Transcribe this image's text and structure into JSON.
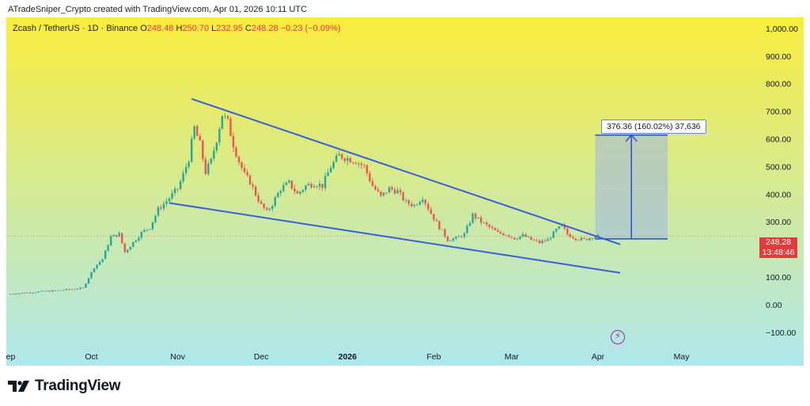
{
  "header": {
    "attribution": "ATradeSniper_Crypto created with TradingView.com, Apr 01, 2026 10:11 UTC"
  },
  "symbol": {
    "name": "Zcash / TetherUS · 1D · Binance",
    "open_label": "O",
    "open": "248.48",
    "high_label": "H",
    "high": "250.70",
    "low_label": "L",
    "low": "232.95",
    "close_label": "C",
    "close": "248.28",
    "change": "−0.23 (−0.09%)"
  },
  "price_tag": {
    "price": "248.28",
    "countdown": "13:48:46"
  },
  "measure": {
    "label": "376.36 (160.02%) 37,636"
  },
  "brand": {
    "name": "TradingView"
  },
  "colors": {
    "up": "#26a69a",
    "down": "#ef5350",
    "trendline": "#3a5fd9",
    "measure_fill": "#9eb6e3",
    "measure_line": "#2f56d1",
    "gradient_top": "#f9ec3d",
    "gradient_bottom": "#aee7ee",
    "price_tag": "#e03c3c"
  },
  "icons": {
    "brand": "tradingview-logo-icon",
    "event": "lightning-bolt-icon"
  },
  "chart_data": {
    "type": "candlestick",
    "title": "Zcash / TetherUS · 1D · Binance",
    "x_type": "date",
    "xlim": [
      "2025-09-01",
      "2026-05-25"
    ],
    "ylim": [
      -135,
      1040
    ],
    "yticks": [
      1000,
      900,
      800,
      700,
      600,
      500,
      400,
      300,
      100,
      0,
      -100
    ],
    "ytick_labels": [
      "1,000.00",
      "900.00",
      "800.00",
      "700.00",
      "600.00",
      "500.00",
      "400.00",
      "300.00",
      "100.00",
      "0.00",
      "−100.00"
    ],
    "xticks": [
      {
        "date": "2025-09-01",
        "label": "Sep"
      },
      {
        "date": "2025-10-01",
        "label": "Oct"
      },
      {
        "date": "2025-11-01",
        "label": "Nov"
      },
      {
        "date": "2025-12-01",
        "label": "Dec"
      },
      {
        "date": "2026-01-01",
        "label": "2026"
      },
      {
        "date": "2026-02-01",
        "label": "Feb"
      },
      {
        "date": "2026-03-01",
        "label": "Mar"
      },
      {
        "date": "2026-04-01",
        "label": "Apr"
      },
      {
        "date": "2026-05-01",
        "label": "May"
      }
    ],
    "last_price": 248.28,
    "grid": false,
    "price_path": [
      {
        "date": "2025-09-01",
        "price": 38
      },
      {
        "date": "2025-09-10",
        "price": 45
      },
      {
        "date": "2025-09-20",
        "price": 52
      },
      {
        "date": "2025-09-28",
        "price": 60
      },
      {
        "date": "2025-10-02",
        "price": 135
      },
      {
        "date": "2025-10-05",
        "price": 165
      },
      {
        "date": "2025-10-08",
        "price": 245
      },
      {
        "date": "2025-10-11",
        "price": 255
      },
      {
        "date": "2025-10-13",
        "price": 190
      },
      {
        "date": "2025-10-16",
        "price": 225
      },
      {
        "date": "2025-10-19",
        "price": 260
      },
      {
        "date": "2025-10-22",
        "price": 280
      },
      {
        "date": "2025-10-25",
        "price": 345
      },
      {
        "date": "2025-10-28",
        "price": 375
      },
      {
        "date": "2025-11-01",
        "price": 420
      },
      {
        "date": "2025-11-03",
        "price": 470
      },
      {
        "date": "2025-11-05",
        "price": 530
      },
      {
        "date": "2025-11-07",
        "price": 640
      },
      {
        "date": "2025-11-09",
        "price": 580
      },
      {
        "date": "2025-11-11",
        "price": 480
      },
      {
        "date": "2025-11-13",
        "price": 520
      },
      {
        "date": "2025-11-15",
        "price": 600
      },
      {
        "date": "2025-11-17",
        "price": 690
      },
      {
        "date": "2025-11-19",
        "price": 660
      },
      {
        "date": "2025-11-21",
        "price": 580
      },
      {
        "date": "2025-11-23",
        "price": 520
      },
      {
        "date": "2025-11-25",
        "price": 470
      },
      {
        "date": "2025-11-27",
        "price": 445
      },
      {
        "date": "2025-11-29",
        "price": 400
      },
      {
        "date": "2025-12-01",
        "price": 360
      },
      {
        "date": "2025-12-03",
        "price": 335
      },
      {
        "date": "2025-12-05",
        "price": 365
      },
      {
        "date": "2025-12-08",
        "price": 420
      },
      {
        "date": "2025-12-11",
        "price": 440
      },
      {
        "date": "2025-12-14",
        "price": 400
      },
      {
        "date": "2025-12-17",
        "price": 430
      },
      {
        "date": "2025-12-20",
        "price": 440
      },
      {
        "date": "2025-12-23",
        "price": 430
      },
      {
        "date": "2025-12-26",
        "price": 500
      },
      {
        "date": "2025-12-29",
        "price": 540
      },
      {
        "date": "2026-01-01",
        "price": 530
      },
      {
        "date": "2026-01-04",
        "price": 520
      },
      {
        "date": "2026-01-07",
        "price": 500
      },
      {
        "date": "2026-01-10",
        "price": 430
      },
      {
        "date": "2026-01-13",
        "price": 390
      },
      {
        "date": "2026-01-16",
        "price": 420
      },
      {
        "date": "2026-01-19",
        "price": 410
      },
      {
        "date": "2026-01-22",
        "price": 370
      },
      {
        "date": "2026-01-25",
        "price": 360
      },
      {
        "date": "2026-01-28",
        "price": 390
      },
      {
        "date": "2026-01-31",
        "price": 330
      },
      {
        "date": "2026-02-03",
        "price": 280
      },
      {
        "date": "2026-02-06",
        "price": 235
      },
      {
        "date": "2026-02-09",
        "price": 240
      },
      {
        "date": "2026-02-12",
        "price": 255
      },
      {
        "date": "2026-02-15",
        "price": 325
      },
      {
        "date": "2026-02-18",
        "price": 300
      },
      {
        "date": "2026-02-21",
        "price": 280
      },
      {
        "date": "2026-02-24",
        "price": 260
      },
      {
        "date": "2026-02-27",
        "price": 255
      },
      {
        "date": "2026-03-02",
        "price": 240
      },
      {
        "date": "2026-03-05",
        "price": 250
      },
      {
        "date": "2026-03-08",
        "price": 235
      },
      {
        "date": "2026-03-11",
        "price": 225
      },
      {
        "date": "2026-03-14",
        "price": 235
      },
      {
        "date": "2026-03-17",
        "price": 270
      },
      {
        "date": "2026-03-19",
        "price": 285
      },
      {
        "date": "2026-03-21",
        "price": 255
      },
      {
        "date": "2026-03-24",
        "price": 240
      },
      {
        "date": "2026-03-27",
        "price": 235
      },
      {
        "date": "2026-03-30",
        "price": 245
      },
      {
        "date": "2026-04-01",
        "price": 248.28
      }
    ],
    "trendlines": [
      {
        "name": "upper",
        "from": {
          "date": "2025-11-06",
          "price": 745
        },
        "to": {
          "date": "2026-04-09",
          "price": 218
        }
      },
      {
        "name": "lower",
        "from": {
          "date": "2025-10-29",
          "price": 368
        },
        "to": {
          "date": "2026-04-09",
          "price": 115
        }
      }
    ],
    "measure": {
      "from": {
        "date": "2026-03-31",
        "price": 238
      },
      "to": {
        "date": "2026-04-26",
        "price": 614
      },
      "change": 376.36,
      "change_percent": 160.02,
      "ticks": 37636
    }
  }
}
